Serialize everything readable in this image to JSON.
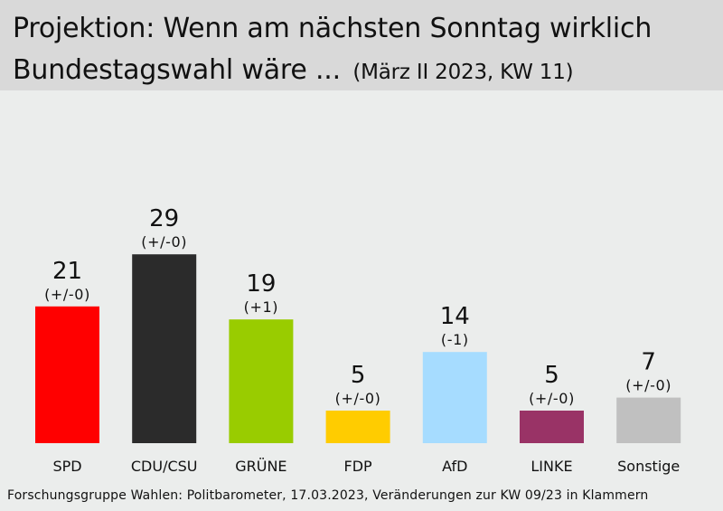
{
  "header": {
    "title_line1": "Projektion: Wenn am nächsten Sonntag wirklich",
    "title_line2": "Bundestagswahl wäre ...",
    "subtitle": "(März II 2023, KW 11)"
  },
  "source": "Forschungsgruppe Wahlen: Politbarometer, 17.03.2023, Veränderungen zur KW 09/23 in Klammern",
  "chart_data": {
    "type": "bar",
    "title": "Projektion: Wenn am nächsten Sonntag wirklich Bundestagswahl wäre ...",
    "subtitle": "(März II 2023, KW 11)",
    "categories": [
      "SPD",
      "CDU/CSU",
      "GRÜNE",
      "FDP",
      "AfD",
      "LINKE",
      "Sonstige"
    ],
    "values": [
      21,
      29,
      19,
      5,
      14,
      5,
      7
    ],
    "changes": [
      "(+/-0)",
      "(+/-0)",
      "(+1)",
      "(+/-0)",
      "(-1)",
      "(+/-0)",
      "(+/-0)"
    ],
    "colors": [
      "#ff0000",
      "#2b2b2b",
      "#99cc00",
      "#ffcc00",
      "#a6dcff",
      "#993366",
      "#c0c0c0"
    ],
    "xlabel": "",
    "ylabel": "",
    "ylim": [
      0,
      32
    ],
    "grid": false,
    "legend": "none"
  }
}
